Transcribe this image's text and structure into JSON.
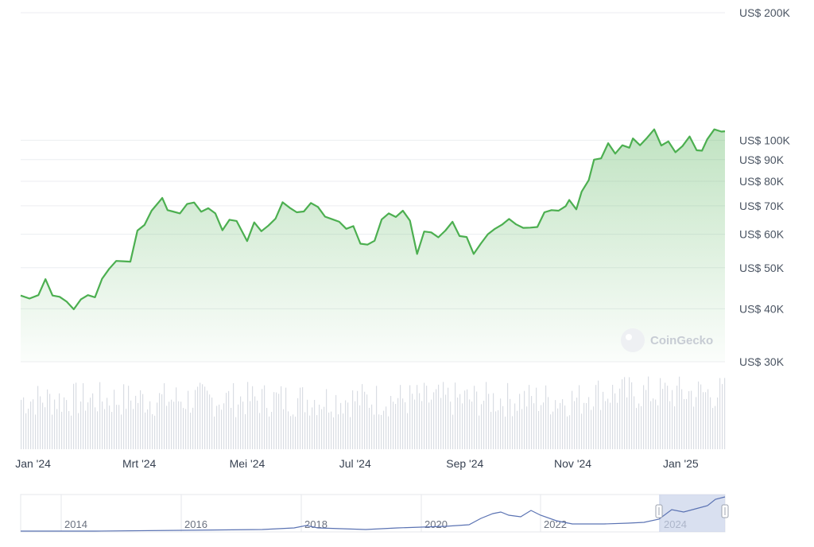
{
  "chart_data": {
    "type": "area",
    "title": "",
    "xlabel": "",
    "ylabel": "",
    "y_scale": "log",
    "ylim": [
      30000,
      200000
    ],
    "currency_prefix": "US$",
    "y_ticks": [
      {
        "value": 200000,
        "label": "US$ 200K"
      },
      {
        "value": 100000,
        "label": "US$ 100K"
      },
      {
        "value": 90000,
        "label": "US$ 90K"
      },
      {
        "value": 80000,
        "label": "US$ 80K"
      },
      {
        "value": 70000,
        "label": "US$ 70K"
      },
      {
        "value": 60000,
        "label": "US$ 60K"
      },
      {
        "value": 50000,
        "label": "US$ 50K"
      },
      {
        "value": 40000,
        "label": "US$ 40K"
      },
      {
        "value": 30000,
        "label": "US$ 30K"
      }
    ],
    "x_ticks": [
      {
        "date": "2024-01-01",
        "label": "Jan '24"
      },
      {
        "date": "2024-03-01",
        "label": "Mrt '24"
      },
      {
        "date": "2024-05-01",
        "label": "Mei '24"
      },
      {
        "date": "2024-07-01",
        "label": "Jul '24"
      },
      {
        "date": "2024-09-01",
        "label": "Sep '24"
      },
      {
        "date": "2024-11-01",
        "label": "Nov '24"
      },
      {
        "date": "2025-01-01",
        "label": "Jan '25"
      }
    ],
    "series": [
      {
        "color": "#4caf50",
        "points": [
          [
            "2023-12-25",
            43000
          ],
          [
            "2023-12-30",
            42300
          ],
          [
            "2024-01-04",
            43100
          ],
          [
            "2024-01-08",
            47000
          ],
          [
            "2024-01-12",
            43000
          ],
          [
            "2024-01-16",
            42700
          ],
          [
            "2024-01-20",
            41600
          ],
          [
            "2024-01-24",
            39900
          ],
          [
            "2024-01-28",
            42100
          ],
          [
            "2024-02-01",
            43100
          ],
          [
            "2024-02-05",
            42600
          ],
          [
            "2024-02-09",
            47100
          ],
          [
            "2024-02-13",
            49700
          ],
          [
            "2024-02-17",
            51900
          ],
          [
            "2024-02-21",
            51800
          ],
          [
            "2024-02-25",
            51700
          ],
          [
            "2024-02-29",
            61200
          ],
          [
            "2024-03-04",
            63100
          ],
          [
            "2024-03-08",
            68200
          ],
          [
            "2024-03-12",
            71400
          ],
          [
            "2024-03-14",
            73100
          ],
          [
            "2024-03-17",
            68400
          ],
          [
            "2024-03-20",
            67900
          ],
          [
            "2024-03-24",
            67200
          ],
          [
            "2024-03-28",
            70700
          ],
          [
            "2024-04-01",
            71300
          ],
          [
            "2024-04-05",
            67800
          ],
          [
            "2024-04-09",
            69100
          ],
          [
            "2024-04-13",
            67200
          ],
          [
            "2024-04-17",
            61300
          ],
          [
            "2024-04-21",
            64900
          ],
          [
            "2024-04-25",
            64500
          ],
          [
            "2024-05-01",
            57800
          ],
          [
            "2024-05-05",
            64000
          ],
          [
            "2024-05-09",
            61000
          ],
          [
            "2024-05-13",
            62900
          ],
          [
            "2024-05-17",
            65300
          ],
          [
            "2024-05-21",
            71400
          ],
          [
            "2024-05-25",
            69300
          ],
          [
            "2024-05-29",
            67600
          ],
          [
            "2024-06-02",
            67900
          ],
          [
            "2024-06-06",
            71100
          ],
          [
            "2024-06-10",
            69600
          ],
          [
            "2024-06-14",
            66000
          ],
          [
            "2024-06-18",
            65100
          ],
          [
            "2024-06-22",
            64200
          ],
          [
            "2024-06-26",
            61800
          ],
          [
            "2024-06-30",
            62700
          ],
          [
            "2024-07-04",
            57000
          ],
          [
            "2024-07-08",
            56700
          ],
          [
            "2024-07-12",
            57900
          ],
          [
            "2024-07-16",
            65000
          ],
          [
            "2024-07-20",
            67200
          ],
          [
            "2024-07-24",
            65900
          ],
          [
            "2024-07-28",
            68200
          ],
          [
            "2024-08-01",
            64600
          ],
          [
            "2024-08-05",
            53900
          ],
          [
            "2024-08-09",
            60900
          ],
          [
            "2024-08-13",
            60600
          ],
          [
            "2024-08-17",
            59000
          ],
          [
            "2024-08-21",
            61200
          ],
          [
            "2024-08-25",
            64200
          ],
          [
            "2024-08-29",
            59400
          ],
          [
            "2024-09-02",
            59100
          ],
          [
            "2024-09-06",
            53900
          ],
          [
            "2024-09-10",
            57000
          ],
          [
            "2024-09-14",
            60000
          ],
          [
            "2024-09-18",
            61800
          ],
          [
            "2024-09-22",
            63200
          ],
          [
            "2024-09-26",
            65200
          ],
          [
            "2024-09-30",
            63300
          ],
          [
            "2024-10-04",
            62100
          ],
          [
            "2024-10-08",
            62200
          ],
          [
            "2024-10-12",
            62400
          ],
          [
            "2024-10-16",
            67600
          ],
          [
            "2024-10-20",
            68400
          ],
          [
            "2024-10-24",
            68200
          ],
          [
            "2024-10-28",
            69900
          ],
          [
            "2024-10-30",
            72300
          ],
          [
            "2024-11-03",
            68700
          ],
          [
            "2024-11-06",
            75600
          ],
          [
            "2024-11-10",
            80500
          ],
          [
            "2024-11-13",
            90000
          ],
          [
            "2024-11-17",
            90600
          ],
          [
            "2024-11-21",
            98400
          ],
          [
            "2024-11-25",
            93000
          ],
          [
            "2024-11-29",
            97300
          ],
          [
            "2024-12-03",
            96000
          ],
          [
            "2024-12-05",
            101000
          ],
          [
            "2024-12-09",
            97300
          ],
          [
            "2024-12-13",
            101400
          ],
          [
            "2024-12-17",
            106100
          ],
          [
            "2024-12-21",
            97200
          ],
          [
            "2024-12-25",
            99400
          ],
          [
            "2024-12-29",
            93700
          ],
          [
            "2025-01-02",
            96900
          ],
          [
            "2025-01-06",
            102100
          ],
          [
            "2025-01-10",
            94700
          ],
          [
            "2025-01-13",
            94500
          ],
          [
            "2025-01-16",
            100500
          ],
          [
            "2025-01-20",
            106100
          ],
          [
            "2025-01-24",
            104800
          ],
          [
            "2025-01-26",
            105000
          ]
        ]
      }
    ],
    "volume": {
      "color": "#d9dde3",
      "note_values_relative": true
    },
    "navigator": {
      "ticks": [
        "2014",
        "2016",
        "2018",
        "2020",
        "2022",
        "2024"
      ],
      "selected_range": [
        "2024-01-01",
        "2025-01-26"
      ],
      "color": "#5b73b3"
    },
    "watermark": "CoinGecko"
  }
}
